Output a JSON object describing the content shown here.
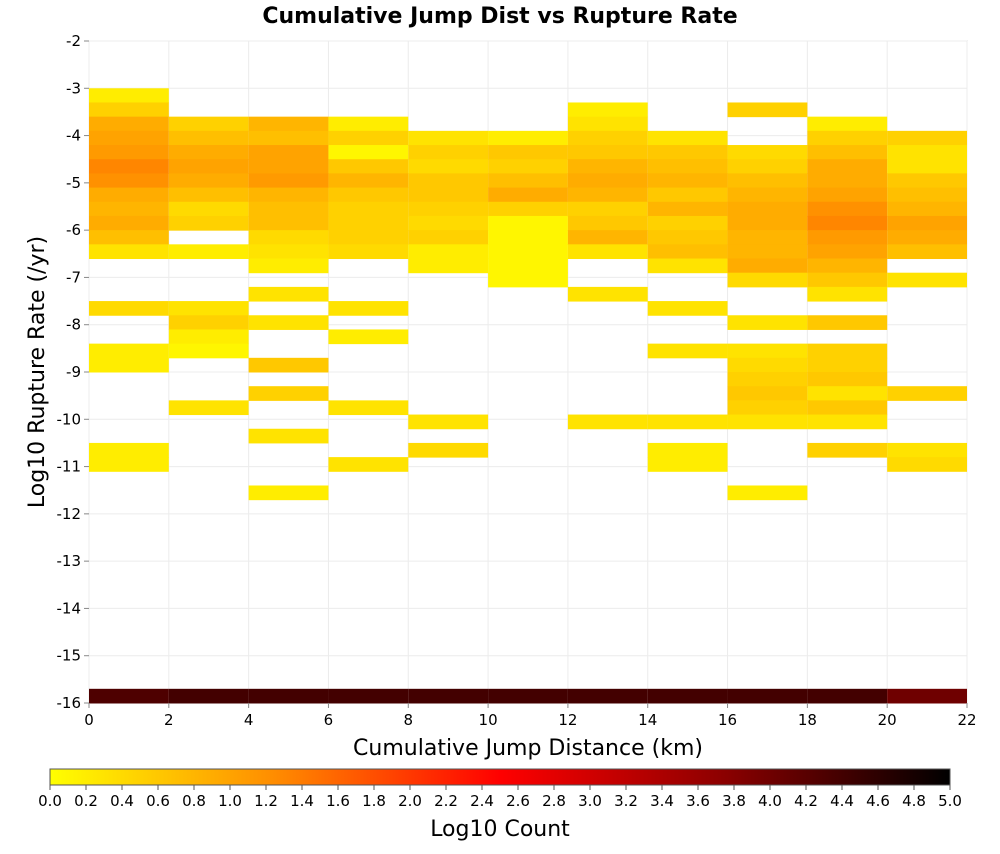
{
  "chart_data": {
    "type": "heatmap",
    "title": "Cumulative Jump Dist vs Rupture Rate",
    "xlabel": "Cumulative Jump Distance (km)",
    "ylabel": "Log10 Rupture Rate (/yr)",
    "xlim": [
      0,
      22
    ],
    "ylim": [
      -16,
      -2
    ],
    "xticks": [
      0,
      2,
      4,
      6,
      8,
      10,
      12,
      14,
      16,
      18,
      20,
      22
    ],
    "yticks": [
      -16,
      -15,
      -14,
      -13,
      -12,
      -11,
      -10,
      -9,
      -8,
      -7,
      -6,
      -5,
      -4,
      -3,
      -2
    ],
    "x_bin_width": 2,
    "y_bin_height": 0.3,
    "grid": true,
    "colorbar": {
      "label": "Log10 Count",
      "min": 0.0,
      "max": 5.0,
      "ticks": [
        "0.0",
        "0.2",
        "0.4",
        "0.6",
        "0.8",
        "1.0",
        "1.2",
        "1.4",
        "1.6",
        "1.8",
        "2.0",
        "2.2",
        "2.4",
        "2.6",
        "2.8",
        "3.0",
        "3.2",
        "3.4",
        "3.6",
        "3.8",
        "4.0",
        "4.2",
        "4.4",
        "4.6",
        "4.8",
        "5.0"
      ],
      "placement": "bottom",
      "colors": [
        "#ffff00",
        "#ff8c00",
        "#ff0000",
        "#8b0000",
        "#000000"
      ]
    },
    "columns": [
      {
        "x": 0,
        "cells": [
          [
            -3.3,
            0.2
          ],
          [
            -3.6,
            0.5
          ],
          [
            -3.9,
            0.9
          ],
          [
            -4.2,
            1.0
          ],
          [
            -4.5,
            1.1
          ],
          [
            -4.8,
            1.3
          ],
          [
            -5.1,
            1.2
          ],
          [
            -5.4,
            0.9
          ],
          [
            -5.7,
            0.8
          ],
          [
            -6.0,
            0.9
          ],
          [
            -6.3,
            0.7
          ],
          [
            -6.6,
            0.3
          ],
          [
            -7.8,
            0.4
          ],
          [
            -8.7,
            0.2
          ],
          [
            -9.0,
            0.2
          ],
          [
            -10.8,
            0.2
          ],
          [
            -11.1,
            0.2
          ],
          [
            -16.0,
            4.3
          ]
        ]
      },
      {
        "x": 2,
        "cells": [
          [
            -3.9,
            0.5
          ],
          [
            -4.2,
            0.7
          ],
          [
            -4.5,
            0.9
          ],
          [
            -4.8,
            1.0
          ],
          [
            -5.1,
            0.9
          ],
          [
            -5.4,
            0.7
          ],
          [
            -5.7,
            0.4
          ],
          [
            -6.0,
            0.5
          ],
          [
            -6.6,
            0.2
          ],
          [
            -7.8,
            0.3
          ],
          [
            -8.1,
            0.5
          ],
          [
            -8.4,
            0.2
          ],
          [
            -8.7,
            0.1
          ],
          [
            -9.9,
            0.3
          ],
          [
            -16.0,
            4.4
          ]
        ]
      },
      {
        "x": 4,
        "cells": [
          [
            -3.9,
            0.8
          ],
          [
            -4.2,
            0.7
          ],
          [
            -4.5,
            1.0
          ],
          [
            -4.8,
            1.0
          ],
          [
            -5.1,
            1.1
          ],
          [
            -5.4,
            0.8
          ],
          [
            -5.7,
            0.7
          ],
          [
            -6.0,
            0.7
          ],
          [
            -6.3,
            0.4
          ],
          [
            -6.6,
            0.3
          ],
          [
            -6.9,
            0.2
          ],
          [
            -7.5,
            0.3
          ],
          [
            -8.1,
            0.3
          ],
          [
            -9.0,
            0.6
          ],
          [
            -9.6,
            0.5
          ],
          [
            -10.5,
            0.3
          ],
          [
            -11.7,
            0.2
          ],
          [
            -16.0,
            4.4
          ]
        ]
      },
      {
        "x": 6,
        "cells": [
          [
            -3.9,
            0.2
          ],
          [
            -4.2,
            0.5
          ],
          [
            -4.5,
            0.1
          ],
          [
            -4.8,
            0.6
          ],
          [
            -5.1,
            0.8
          ],
          [
            -5.4,
            0.6
          ],
          [
            -5.7,
            0.5
          ],
          [
            -6.0,
            0.5
          ],
          [
            -6.3,
            0.5
          ],
          [
            -6.6,
            0.4
          ],
          [
            -7.8,
            0.3
          ],
          [
            -8.4,
            0.2
          ],
          [
            -9.9,
            0.3
          ],
          [
            -11.1,
            0.3
          ],
          [
            -16.0,
            4.4
          ]
        ]
      },
      {
        "x": 8,
        "cells": [
          [
            -4.2,
            0.3
          ],
          [
            -4.5,
            0.5
          ],
          [
            -4.8,
            0.4
          ],
          [
            -5.1,
            0.6
          ],
          [
            -5.4,
            0.6
          ],
          [
            -5.7,
            0.5
          ],
          [
            -6.0,
            0.4
          ],
          [
            -6.3,
            0.5
          ],
          [
            -6.6,
            0.2
          ],
          [
            -6.9,
            0.2
          ],
          [
            -10.2,
            0.3
          ],
          [
            -10.8,
            0.4
          ],
          [
            -16.0,
            4.4
          ]
        ]
      },
      {
        "x": 10,
        "cells": [
          [
            -4.2,
            0.2
          ],
          [
            -4.5,
            0.6
          ],
          [
            -4.8,
            0.5
          ],
          [
            -5.1,
            0.7
          ],
          [
            -5.4,
            0.9
          ],
          [
            -5.7,
            0.5
          ],
          [
            -6.0,
            0.1
          ],
          [
            -6.3,
            0.1
          ],
          [
            -6.6,
            0.1
          ],
          [
            -6.9,
            0.1
          ],
          [
            -7.2,
            0.1
          ],
          [
            -16.0,
            4.4
          ]
        ]
      },
      {
        "x": 12,
        "cells": [
          [
            -3.6,
            0.2
          ],
          [
            -3.9,
            0.3
          ],
          [
            -4.2,
            0.5
          ],
          [
            -4.5,
            0.6
          ],
          [
            -4.8,
            0.8
          ],
          [
            -5.1,
            0.9
          ],
          [
            -5.4,
            0.8
          ],
          [
            -5.7,
            0.5
          ],
          [
            -6.0,
            0.6
          ],
          [
            -6.3,
            0.8
          ],
          [
            -6.6,
            0.3
          ],
          [
            -7.5,
            0.3
          ],
          [
            -10.2,
            0.3
          ],
          [
            -16.0,
            4.4
          ]
        ]
      },
      {
        "x": 14,
        "cells": [
          [
            -4.2,
            0.3
          ],
          [
            -4.5,
            0.6
          ],
          [
            -4.8,
            0.7
          ],
          [
            -5.1,
            0.8
          ],
          [
            -5.4,
            0.6
          ],
          [
            -5.7,
            0.8
          ],
          [
            -6.0,
            0.5
          ],
          [
            -6.3,
            0.6
          ],
          [
            -6.6,
            0.7
          ],
          [
            -6.9,
            0.3
          ],
          [
            -7.8,
            0.3
          ],
          [
            -8.7,
            0.3
          ],
          [
            -10.2,
            0.3
          ],
          [
            -10.8,
            0.2
          ],
          [
            -11.1,
            0.2
          ],
          [
            -16.0,
            4.4
          ]
        ]
      },
      {
        "x": 16,
        "cells": [
          [
            -3.6,
            0.5
          ],
          [
            -4.5,
            0.4
          ],
          [
            -4.8,
            0.5
          ],
          [
            -5.1,
            0.7
          ],
          [
            -5.4,
            0.8
          ],
          [
            -5.7,
            0.9
          ],
          [
            -6.0,
            0.9
          ],
          [
            -6.3,
            0.8
          ],
          [
            -6.6,
            0.8
          ],
          [
            -6.9,
            0.9
          ],
          [
            -7.2,
            0.4
          ],
          [
            -8.1,
            0.3
          ],
          [
            -8.7,
            0.3
          ],
          [
            -9.0,
            0.4
          ],
          [
            -9.3,
            0.5
          ],
          [
            -9.6,
            0.6
          ],
          [
            -9.9,
            0.5
          ],
          [
            -10.2,
            0.3
          ],
          [
            -11.7,
            0.2
          ],
          [
            -16.0,
            4.4
          ]
        ]
      },
      {
        "x": 18,
        "cells": [
          [
            -3.9,
            0.2
          ],
          [
            -4.2,
            0.5
          ],
          [
            -4.5,
            0.7
          ],
          [
            -4.8,
            0.9
          ],
          [
            -5.1,
            0.9
          ],
          [
            -5.4,
            1.0
          ],
          [
            -5.7,
            1.2
          ],
          [
            -6.0,
            1.3
          ],
          [
            -6.3,
            1.1
          ],
          [
            -6.6,
            1.0
          ],
          [
            -6.9,
            0.8
          ],
          [
            -7.2,
            0.6
          ],
          [
            -7.5,
            0.3
          ],
          [
            -8.1,
            0.6
          ],
          [
            -8.7,
            0.5
          ],
          [
            -9.0,
            0.5
          ],
          [
            -9.3,
            0.6
          ],
          [
            -9.6,
            0.3
          ],
          [
            -9.9,
            0.6
          ],
          [
            -10.2,
            0.3
          ],
          [
            -10.8,
            0.5
          ],
          [
            -16.0,
            4.4
          ]
        ]
      },
      {
        "x": 20,
        "cells": [
          [
            -4.2,
            0.5
          ],
          [
            -4.5,
            0.3
          ],
          [
            -4.8,
            0.3
          ],
          [
            -5.1,
            0.6
          ],
          [
            -5.4,
            0.7
          ],
          [
            -5.7,
            0.8
          ],
          [
            -6.0,
            1.0
          ],
          [
            -6.3,
            0.9
          ],
          [
            -6.6,
            0.7
          ],
          [
            -7.2,
            0.3
          ],
          [
            -9.6,
            0.5
          ],
          [
            -10.8,
            0.3
          ],
          [
            -11.1,
            0.4
          ],
          [
            -16.0,
            4.0
          ]
        ]
      }
    ]
  }
}
